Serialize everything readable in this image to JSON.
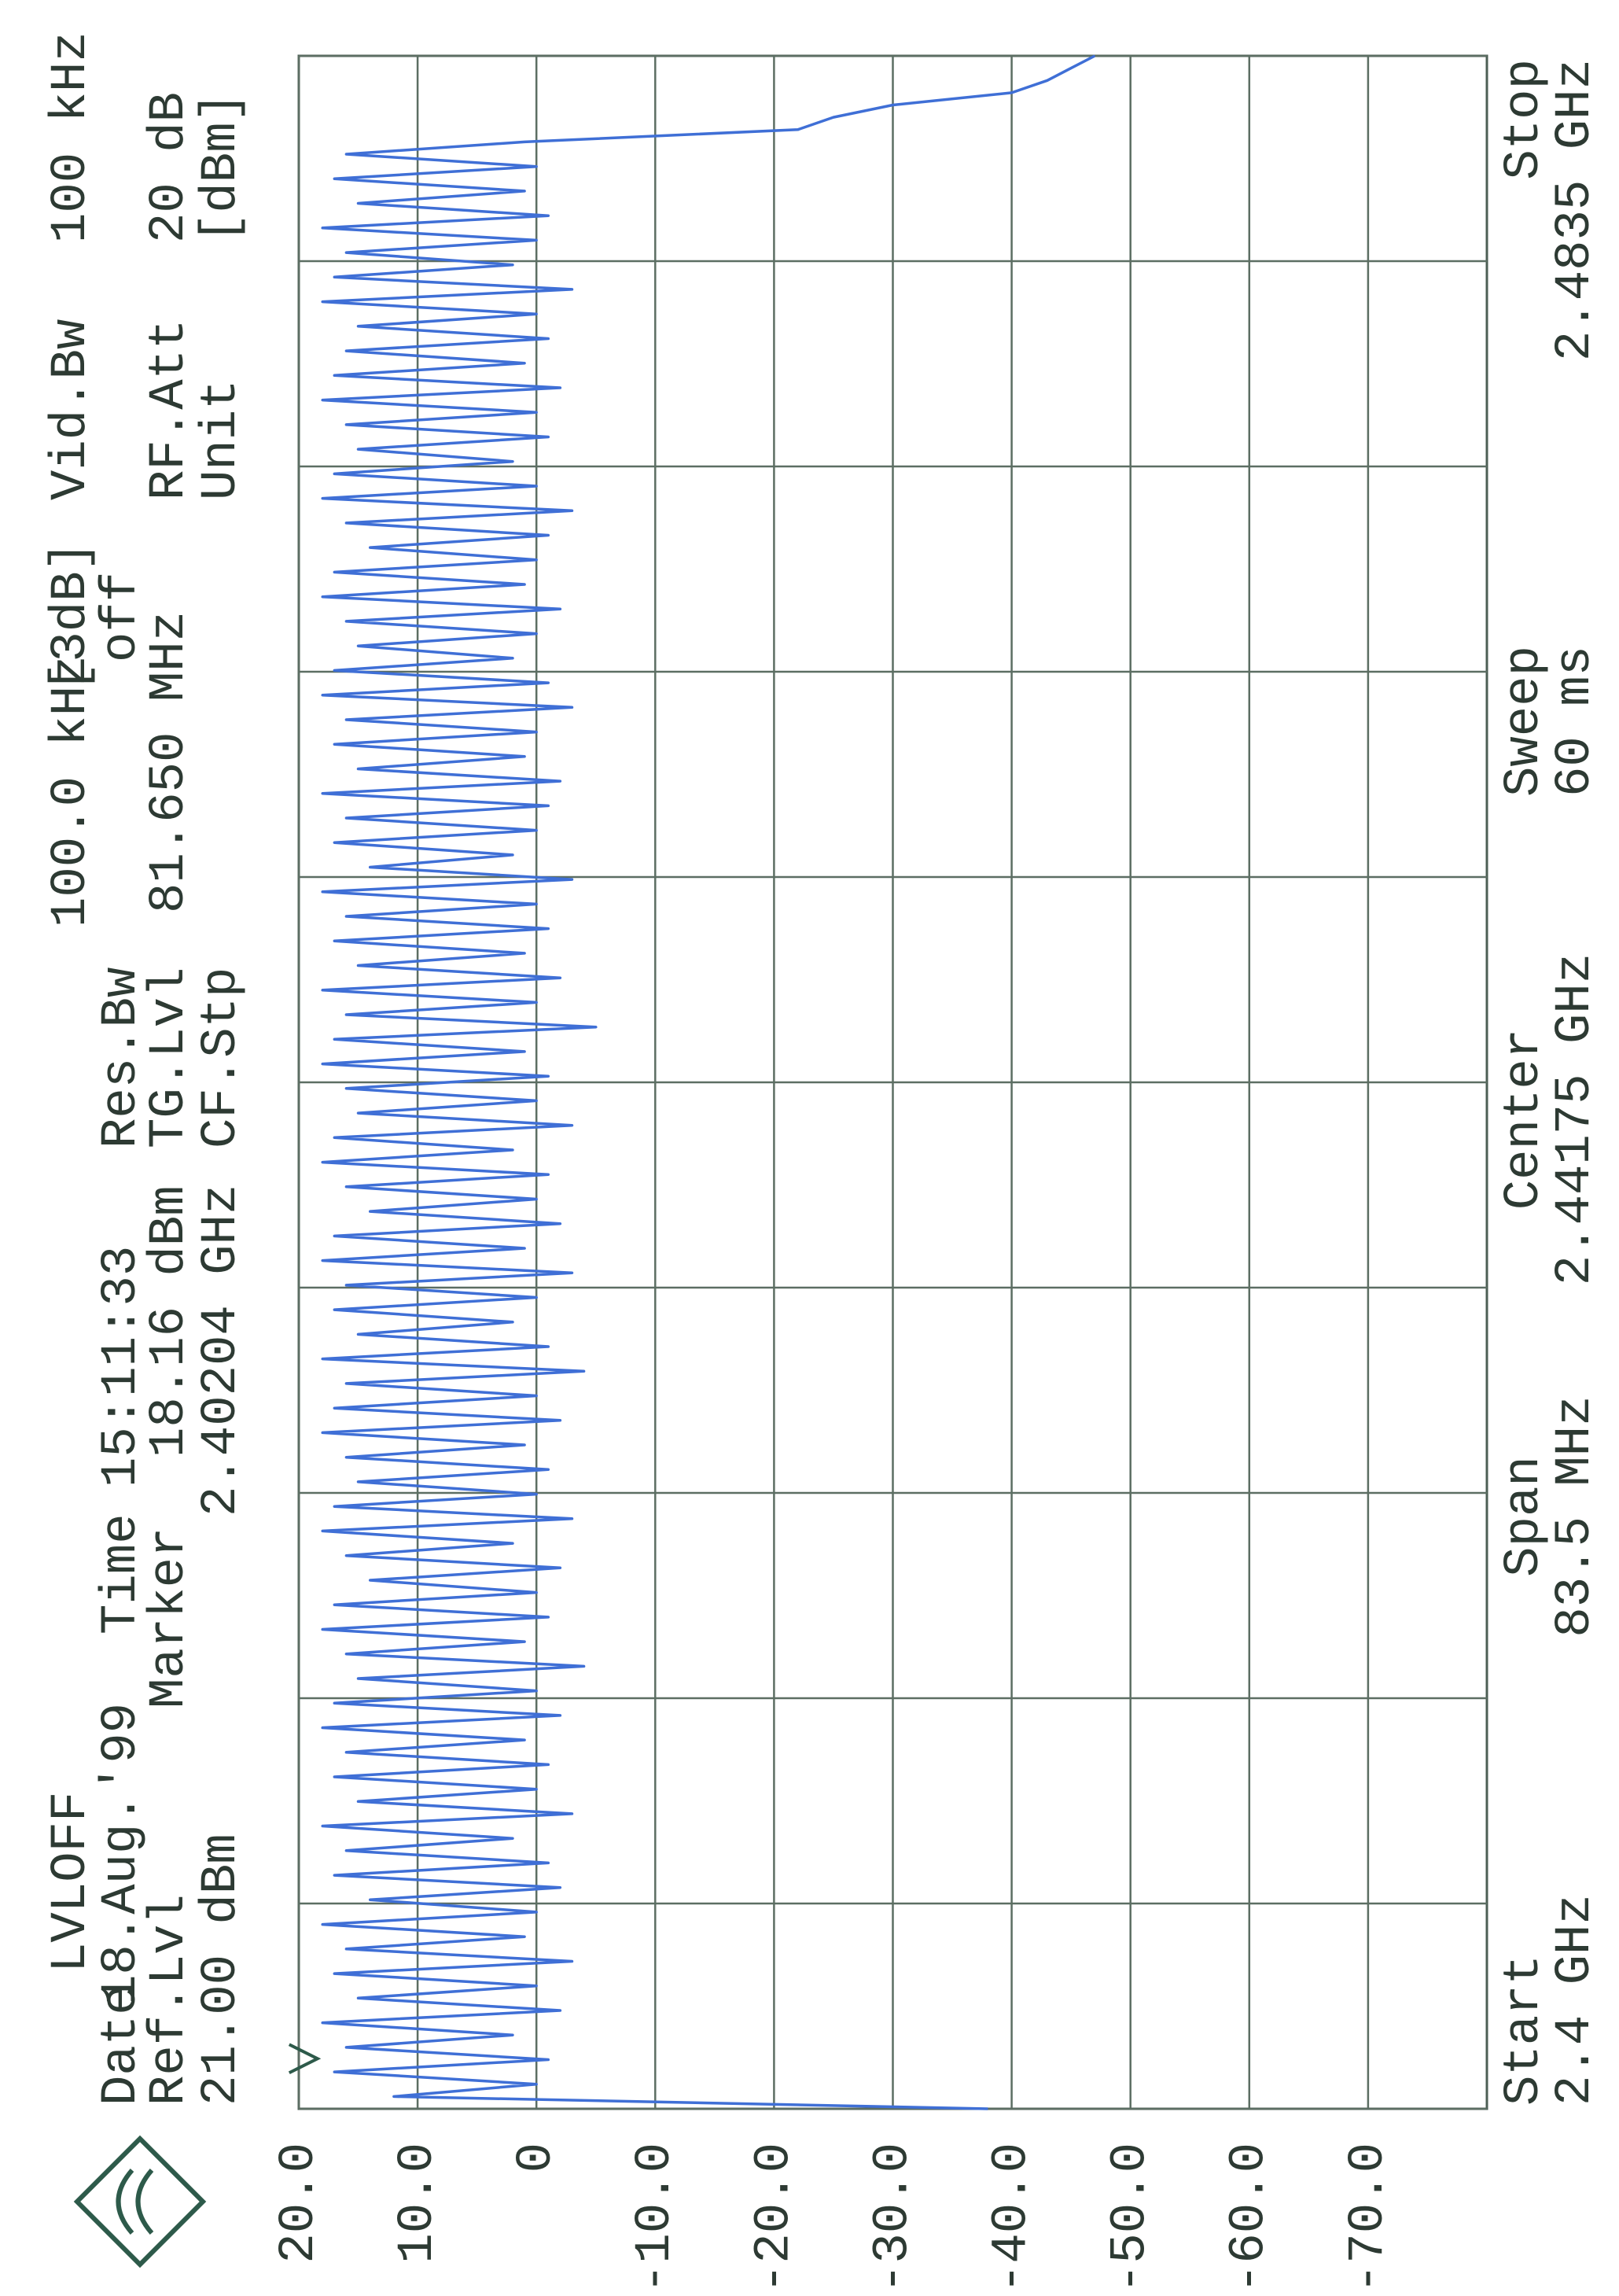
{
  "chart_data": {
    "type": "line",
    "annotations": [
      "LVLOFF",
      "Date",
      "18.Aug.'99",
      "Time",
      "15:11:33",
      "Ref.Lvl",
      "Marker",
      "21.00 dBm",
      "18.16 dBm",
      "2.40204 GHz",
      "Res.Bw",
      "100.0 kHz",
      "[3dB]",
      "TG.Lvl",
      "off",
      "CF.Stp",
      "81.650 MHz",
      "Vid.Bw",
      "100 kHz",
      "RF.Att",
      "20 dB",
      "Unit",
      "[dBm]",
      "Start",
      "2.4 GHz",
      "Span",
      "83.5 MHz",
      "Center",
      "2.44175 GHz",
      "Sweep",
      "60 ms",
      "Stop",
      "2.4835 GHz"
    ],
    "marker_x": 2.40204,
    "marker_y": 18.16,
    "xlim": [
      2.4,
      2.4835
    ],
    "xticks": [
      2.4,
      2.40835,
      2.4167,
      2.42505,
      2.4334,
      2.44175,
      2.4501,
      2.45845,
      2.4668,
      2.47515,
      2.4835
    ],
    "ylim": [
      -80,
      20
    ],
    "yticks": [
      {
        "value": 20,
        "label": "20.0"
      },
      {
        "value": 10,
        "label": "10.0"
      },
      0,
      {
        "value": -10,
        "label": "-10.0"
      },
      {
        "value": -20,
        "label": "-20.0"
      },
      {
        "value": -30,
        "label": "-30.0"
      },
      {
        "value": -40,
        "label": "-40.0"
      },
      {
        "value": -50,
        "label": "-50.0"
      },
      {
        "value": -60,
        "label": "-60.0"
      },
      {
        "value": -70,
        "label": "-70.0"
      }
    ],
    "grid": true,
    "color": "#3f6fd6",
    "x": [
      2.4,
      2.4005,
      2.401,
      2.4015,
      2.402,
      2.4025,
      2.403,
      2.4035,
      2.404,
      2.4045,
      2.405,
      2.4055,
      2.406,
      2.4065,
      2.407,
      2.4075,
      2.408,
      2.4085,
      2.409,
      2.4095,
      2.41,
      2.4105,
      2.411,
      2.4115,
      2.412,
      2.4125,
      2.413,
      2.4135,
      2.414,
      2.4145,
      2.415,
      2.4155,
      2.416,
      2.4165,
      2.417,
      2.4175,
      2.418,
      2.4185,
      2.419,
      2.4195,
      2.42,
      2.4205,
      2.421,
      2.4215,
      2.422,
      2.4225,
      2.423,
      2.4235,
      2.424,
      2.4245,
      2.425,
      2.4255,
      2.426,
      2.4265,
      2.427,
      2.4275,
      2.428,
      2.4285,
      2.429,
      2.4295,
      2.43,
      2.4305,
      2.431,
      2.4315,
      2.432,
      2.4325,
      2.433,
      2.4335,
      2.434,
      2.4345,
      2.435,
      2.4355,
      2.436,
      2.4365,
      2.437,
      2.4375,
      2.438,
      2.4385,
      2.439,
      2.4395,
      2.44,
      2.4405,
      2.441,
      2.4415,
      2.442,
      2.4425,
      2.443,
      2.4435,
      2.444,
      2.4445,
      2.445,
      2.4455,
      2.446,
      2.4465,
      2.447,
      2.4475,
      2.448,
      2.4485,
      2.449,
      2.4495,
      2.45,
      2.4505,
      2.451,
      2.4515,
      2.452,
      2.4525,
      2.453,
      2.4535,
      2.454,
      2.4545,
      2.455,
      2.4555,
      2.456,
      2.4565,
      2.457,
      2.4575,
      2.458,
      2.4585,
      2.459,
      2.4595,
      2.46,
      2.4605,
      2.461,
      2.4615,
      2.462,
      2.4625,
      2.463,
      2.4635,
      2.464,
      2.4645,
      2.465,
      2.4655,
      2.466,
      2.4665,
      2.467,
      2.4675,
      2.468,
      2.4685,
      2.469,
      2.4695,
      2.47,
      2.4705,
      2.471,
      2.4715,
      2.472,
      2.4725,
      2.473,
      2.4735,
      2.474,
      2.4745,
      2.475,
      2.4755,
      2.476,
      2.4765,
      2.477,
      2.4775,
      2.478,
      2.4785,
      2.479,
      2.4795,
      2.48,
      2.4805,
      2.481,
      2.4815,
      2.482,
      2.4825,
      2.483,
      2.4835
    ],
    "values": [
      -38,
      12,
      0,
      17,
      -1,
      16,
      2,
      18,
      -2,
      15,
      0,
      17,
      -3,
      16,
      1,
      18,
      0,
      14,
      -2,
      17,
      -1,
      16,
      2,
      18,
      -3,
      15,
      0,
      17,
      -1,
      16,
      1,
      18,
      -2,
      17,
      0,
      15,
      -4,
      16,
      1,
      18,
      -1,
      17,
      0,
      14,
      -2,
      16,
      2,
      18,
      -3,
      17,
      0,
      15,
      -1,
      16,
      1,
      18,
      -2,
      17,
      0,
      16,
      -4,
      18,
      -1,
      15,
      2,
      17,
      0,
      16,
      -3,
      18,
      1,
      17,
      -2,
      14,
      0,
      16,
      -1,
      18,
      2,
      17,
      -3,
      15,
      0,
      16,
      -1,
      18,
      1,
      17,
      -5,
      16,
      0,
      18,
      -2,
      15,
      1,
      17,
      -1,
      16,
      0,
      18,
      -3,
      14,
      2,
      17,
      0,
      16,
      -1,
      18,
      -2,
      15,
      1,
      17,
      0,
      16,
      -3,
      18,
      -1,
      17,
      2,
      15,
      0,
      16,
      -2,
      18,
      1,
      17,
      0,
      14,
      -1,
      16,
      -3,
      18,
      0,
      17,
      2,
      15,
      -1,
      16,
      0,
      18,
      -2,
      17,
      1,
      16,
      -1,
      15,
      0,
      18,
      -3,
      17,
      2,
      16,
      0,
      18,
      -1,
      15,
      1,
      17,
      0,
      16,
      1,
      -22,
      -25,
      -30,
      -40,
      -43,
      -45,
      -47
    ]
  }
}
